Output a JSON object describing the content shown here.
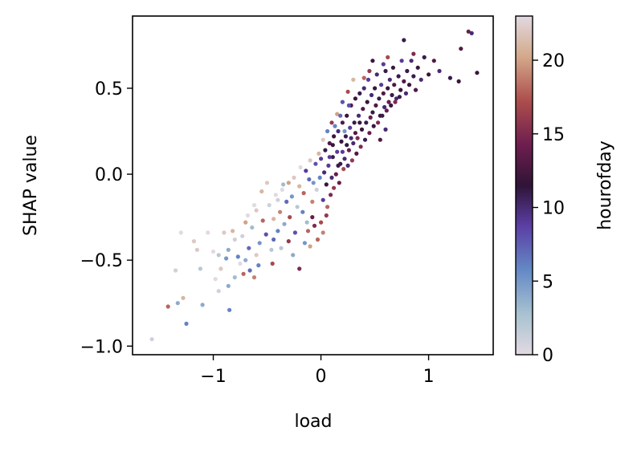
{
  "chart_data": {
    "type": "scatter",
    "xlabel": "load",
    "ylabel": "SHAP value",
    "xlim": [
      -1.75,
      1.6
    ],
    "ylim": [
      -1.05,
      0.92
    ],
    "xticks": [
      -1,
      0,
      1
    ],
    "xtick_labels": [
      "−1",
      "0",
      "1"
    ],
    "yticks": [
      -1.0,
      -0.5,
      0.0,
      0.5
    ],
    "ytick_labels": [
      "−1.0",
      "−0.5",
      "0.0",
      "0.5"
    ],
    "colorbar": {
      "label": "hourofday",
      "range": [
        0,
        23
      ],
      "ticks": [
        0,
        5,
        10,
        15,
        20
      ],
      "tick_labels": [
        "0",
        "5",
        "10",
        "15",
        "20"
      ],
      "colormap": "twilight"
    },
    "grid": false,
    "points": [
      [
        -1.57,
        -0.96,
        1
      ],
      [
        -1.42,
        -0.77,
        18
      ],
      [
        -1.33,
        -0.75,
        4
      ],
      [
        -1.25,
        -0.87,
        6
      ],
      [
        -1.28,
        -0.72,
        21
      ],
      [
        -1.35,
        -0.56,
        1
      ],
      [
        -1.3,
        -0.34,
        0
      ],
      [
        -1.1,
        -0.76,
        4
      ],
      [
        -0.98,
        -0.61,
        0
      ],
      [
        -0.85,
        -0.79,
        6
      ],
      [
        -0.8,
        -0.6,
        3
      ],
      [
        -0.93,
        -0.55,
        22
      ],
      [
        -0.72,
        -0.58,
        18
      ],
      [
        -0.66,
        -0.56,
        7
      ],
      [
        -0.62,
        -0.6,
        19
      ],
      [
        -0.58,
        -0.53,
        6
      ],
      [
        -1.18,
        -0.39,
        22
      ],
      [
        -1.05,
        -0.34,
        0
      ],
      [
        -0.95,
        -0.47,
        2
      ],
      [
        -0.86,
        -0.44,
        4
      ],
      [
        -0.82,
        -0.33,
        21
      ],
      [
        -0.77,
        -0.48,
        6
      ],
      [
        -0.73,
        -0.36,
        1
      ],
      [
        -0.7,
        -0.28,
        20
      ],
      [
        -0.67,
        -0.43,
        7
      ],
      [
        -0.64,
        -0.31,
        3
      ],
      [
        -0.6,
        -0.21,
        22
      ],
      [
        -0.57,
        -0.4,
        5
      ],
      [
        -0.54,
        -0.27,
        18
      ],
      [
        -0.51,
        -0.35,
        8
      ],
      [
        -0.48,
        -0.18,
        1
      ],
      [
        -0.46,
        -0.44,
        2
      ],
      [
        -0.44,
        -0.26,
        21
      ],
      [
        -0.42,
        -0.12,
        0
      ],
      [
        -0.4,
        -0.33,
        6
      ],
      [
        -0.38,
        -0.22,
        19
      ],
      [
        -0.36,
        -0.09,
        23
      ],
      [
        -0.34,
        -0.29,
        4
      ],
      [
        -0.32,
        -0.16,
        7
      ],
      [
        -0.3,
        -0.05,
        20
      ],
      [
        -0.29,
        -0.25,
        17
      ],
      [
        -0.27,
        -0.13,
        5
      ],
      [
        -0.25,
        -0.02,
        22
      ],
      [
        -0.24,
        -0.34,
        8
      ],
      [
        -0.22,
        -0.19,
        2
      ],
      [
        -0.2,
        -0.07,
        21
      ],
      [
        -0.19,
        0.04,
        0
      ],
      [
        -0.17,
        -0.22,
        6
      ],
      [
        -0.16,
        -0.11,
        18
      ],
      [
        -0.14,
        0.02,
        9
      ],
      [
        -0.13,
        -0.28,
        3
      ],
      [
        -0.11,
        -0.03,
        7
      ],
      [
        -0.1,
        0.08,
        22
      ],
      [
        -0.08,
        -0.16,
        19
      ],
      [
        -0.07,
        -0.05,
        5
      ],
      [
        -0.05,
        0.06,
        8
      ],
      [
        -0.04,
        -0.09,
        1
      ],
      [
        -0.02,
        0.12,
        21
      ],
      [
        -0.01,
        -0.02,
        6
      ],
      [
        0.0,
        0.09,
        9
      ],
      [
        -0.55,
        -0.1,
        21
      ],
      [
        -0.62,
        -0.18,
        0
      ],
      [
        -0.68,
        -0.24,
        23
      ],
      [
        -0.5,
        -0.05,
        22
      ],
      [
        -0.45,
        -0.52,
        17
      ],
      [
        -0.37,
        -0.43,
        2
      ],
      [
        -0.3,
        -0.39,
        16
      ],
      [
        -0.26,
        -0.47,
        4
      ],
      [
        -0.2,
        -0.55,
        15
      ],
      [
        -0.15,
        -0.4,
        5
      ],
      [
        -0.12,
        -0.33,
        18
      ],
      [
        -0.08,
        -0.25,
        14
      ],
      [
        0.02,
        -0.15,
        9
      ],
      [
        0.03,
        0.01,
        10
      ],
      [
        0.04,
        0.14,
        11
      ],
      [
        0.05,
        -0.06,
        12
      ],
      [
        0.07,
        0.05,
        9
      ],
      [
        0.08,
        0.18,
        13
      ],
      [
        0.1,
        -0.02,
        10
      ],
      [
        0.11,
        0.1,
        11
      ],
      [
        0.12,
        0.22,
        12
      ],
      [
        0.14,
        0.0,
        14
      ],
      [
        0.15,
        0.13,
        9
      ],
      [
        0.16,
        0.25,
        10
      ],
      [
        0.18,
        0.06,
        11
      ],
      [
        0.19,
        0.19,
        12
      ],
      [
        0.2,
        0.3,
        13
      ],
      [
        0.22,
        0.09,
        10
      ],
      [
        0.23,
        0.22,
        11
      ],
      [
        0.24,
        0.34,
        12
      ],
      [
        0.26,
        0.14,
        14
      ],
      [
        0.27,
        0.27,
        9
      ],
      [
        0.28,
        0.4,
        13
      ],
      [
        0.3,
        0.18,
        10
      ],
      [
        0.31,
        0.3,
        11
      ],
      [
        0.32,
        0.44,
        12
      ],
      [
        0.34,
        0.21,
        15
      ],
      [
        0.35,
        0.34,
        10
      ],
      [
        0.36,
        0.47,
        11
      ],
      [
        0.38,
        0.26,
        12
      ],
      [
        0.39,
        0.38,
        13
      ],
      [
        0.4,
        0.5,
        10
      ],
      [
        0.42,
        0.3,
        11
      ],
      [
        0.43,
        0.42,
        12
      ],
      [
        0.44,
        0.55,
        9
      ],
      [
        0.46,
        0.33,
        14
      ],
      [
        0.47,
        0.46,
        10
      ],
      [
        0.48,
        0.36,
        11
      ],
      [
        0.5,
        0.5,
        12
      ],
      [
        0.51,
        0.4,
        13
      ],
      [
        0.52,
        0.58,
        10
      ],
      [
        0.54,
        0.44,
        11
      ],
      [
        0.55,
        0.34,
        12
      ],
      [
        0.56,
        0.52,
        9
      ],
      [
        0.58,
        0.47,
        13
      ],
      [
        0.59,
        0.39,
        10
      ],
      [
        0.6,
        0.6,
        11
      ],
      [
        0.62,
        0.5,
        12
      ],
      [
        0.63,
        0.42,
        14
      ],
      [
        0.64,
        0.55,
        10
      ],
      [
        0.66,
        0.46,
        11
      ],
      [
        0.67,
        0.62,
        12
      ],
      [
        0.68,
        0.52,
        13
      ],
      [
        0.7,
        0.44,
        10
      ],
      [
        0.72,
        0.57,
        11
      ],
      [
        0.74,
        0.49,
        12
      ],
      [
        0.75,
        0.66,
        9
      ],
      [
        0.77,
        0.54,
        13
      ],
      [
        0.79,
        0.47,
        10
      ],
      [
        0.8,
        0.6,
        11
      ],
      [
        0.82,
        0.52,
        12
      ],
      [
        0.84,
        0.66,
        10
      ],
      [
        0.86,
        0.57,
        11
      ],
      [
        0.88,
        0.49,
        13
      ],
      [
        0.9,
        0.62,
        12
      ],
      [
        0.93,
        0.55,
        10
      ],
      [
        0.96,
        0.68,
        11
      ],
      [
        1.0,
        0.58,
        12
      ],
      [
        1.05,
        0.66,
        13
      ],
      [
        1.1,
        0.6,
        10
      ],
      [
        1.2,
        0.56,
        11
      ],
      [
        1.28,
        0.54,
        12
      ],
      [
        1.3,
        0.73,
        13
      ],
      [
        1.37,
        0.83,
        14
      ],
      [
        1.4,
        0.82,
        10
      ],
      [
        1.45,
        0.59,
        12
      ],
      [
        0.77,
        0.78,
        11
      ],
      [
        0.86,
        0.7,
        15
      ],
      [
        0.62,
        0.68,
        17
      ],
      [
        0.58,
        0.64,
        9
      ],
      [
        0.48,
        0.66,
        12
      ],
      [
        0.45,
        0.6,
        16
      ],
      [
        0.4,
        0.56,
        18
      ],
      [
        0.3,
        0.55,
        21
      ],
      [
        0.25,
        0.48,
        17
      ],
      [
        0.2,
        0.42,
        8
      ],
      [
        0.15,
        0.35,
        20
      ],
      [
        0.1,
        0.3,
        16
      ],
      [
        0.06,
        0.25,
        6
      ],
      [
        0.02,
        0.2,
        22
      ],
      [
        0.09,
        -0.12,
        15
      ],
      [
        0.06,
        -0.19,
        18
      ],
      [
        0.12,
        -0.08,
        16
      ],
      [
        0.17,
        -0.05,
        14
      ],
      [
        0.21,
        0.03,
        17
      ],
      [
        0.25,
        0.05,
        10
      ],
      [
        0.29,
        0.08,
        16
      ],
      [
        0.33,
        0.12,
        13
      ],
      [
        0.37,
        0.16,
        15
      ],
      [
        0.41,
        0.2,
        11
      ],
      [
        0.45,
        0.24,
        14
      ],
      [
        0.49,
        0.28,
        12
      ],
      [
        0.53,
        0.3,
        15
      ],
      [
        0.57,
        0.34,
        11
      ],
      [
        0.61,
        0.37,
        14
      ],
      [
        0.65,
        0.4,
        12
      ],
      [
        0.69,
        0.42,
        15
      ],
      [
        0.73,
        0.45,
        11
      ],
      [
        0.55,
        0.2,
        13
      ],
      [
        0.6,
        0.26,
        10
      ],
      [
        0.05,
        -0.24,
        16
      ],
      [
        0.02,
        -0.34,
        19
      ],
      [
        0.0,
        -0.28,
        17
      ],
      [
        -0.03,
        -0.38,
        18
      ],
      [
        -0.06,
        -0.3,
        15
      ],
      [
        -0.1,
        -0.42,
        20
      ],
      [
        -0.35,
        -0.06,
        3
      ],
      [
        -0.4,
        -0.15,
        1
      ],
      [
        -0.44,
        -0.38,
        7
      ],
      [
        -0.6,
        -0.47,
        22
      ],
      [
        -0.7,
        -0.5,
        4
      ],
      [
        -0.75,
        -0.52,
        23
      ],
      [
        -0.8,
        -0.38,
        1
      ],
      [
        -0.88,
        -0.49,
        5
      ],
      [
        -0.9,
        -0.34,
        22
      ],
      [
        -1.0,
        -0.45,
        0
      ],
      [
        -1.12,
        -0.55,
        2
      ],
      [
        -1.15,
        -0.44,
        22
      ],
      [
        -0.95,
        -0.68,
        1
      ],
      [
        -0.86,
        -0.65,
        4
      ],
      [
        0.08,
        0.1,
        9
      ],
      [
        0.11,
        0.17,
        12
      ],
      [
        0.16,
        0.05,
        11
      ],
      [
        0.2,
        0.13,
        9
      ],
      [
        0.24,
        0.17,
        12
      ],
      [
        0.28,
        0.21,
        10
      ],
      [
        0.32,
        0.24,
        13
      ],
      [
        0.36,
        0.3,
        12
      ],
      [
        0.13,
        0.28,
        6
      ],
      [
        0.18,
        0.34,
        7
      ],
      [
        0.22,
        0.25,
        5
      ],
      [
        0.26,
        0.4,
        8
      ]
    ]
  }
}
